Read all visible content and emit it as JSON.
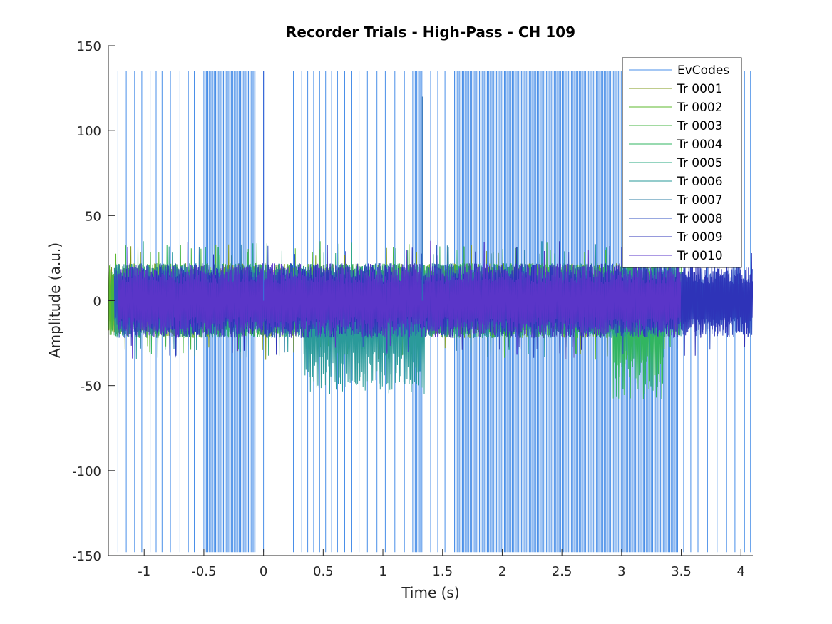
{
  "chart_data": {
    "type": "line",
    "title": "Recorder Trials - High-Pass - CH 109",
    "xlabel": "Time (s)",
    "ylabel": "Amplitude (a.u.)",
    "xlim": [
      -1.3,
      4.1
    ],
    "ylim": [
      -150,
      150
    ],
    "xticks": [
      -1,
      -0.5,
      0,
      0.5,
      1,
      1.5,
      2,
      2.5,
      3,
      3.5,
      4
    ],
    "xtick_labels": [
      "-1",
      "-0.5",
      "0",
      "0.5",
      "1",
      "1.5",
      "2",
      "2.5",
      "3",
      "3.5",
      "4"
    ],
    "yticks": [
      -150,
      -100,
      -50,
      0,
      50,
      100,
      150
    ],
    "ytick_labels": [
      "-150",
      "-100",
      "-50",
      "0",
      "50",
      "100",
      "150"
    ],
    "grid": false,
    "legend_position": "top-right",
    "evcodes": {
      "name": "EvCodes",
      "color": "#4a8fe8",
      "high": 135,
      "low": -148,
      "dense_bands": [
        [
          -0.5,
          -0.07
        ],
        [
          1.25,
          1.33
        ],
        [
          1.6,
          3.48
        ]
      ],
      "sparse_times": [
        -1.3,
        -1.22,
        -1.15,
        -1.08,
        -1.02,
        -0.95,
        -0.9,
        -0.85,
        -0.78,
        -0.7,
        -0.63,
        -0.58,
        0.0,
        0.25,
        0.28,
        0.32,
        0.37,
        0.42,
        0.47,
        0.52,
        0.57,
        0.62,
        0.68,
        0.74,
        0.8,
        0.87,
        0.95,
        1.02,
        1.1,
        1.18,
        1.4,
        1.46,
        1.52,
        3.52,
        3.58,
        3.64,
        3.72,
        3.8,
        3.88,
        3.95,
        4.03,
        4.08
      ]
    },
    "series": [
      {
        "name": "Tr 0001",
        "color": "#7f9a1a",
        "t_start": -1.3,
        "t_end": 3.0
      },
      {
        "name": "Tr 0002",
        "color": "#5cb82d",
        "t_start": -1.3,
        "t_end": 3.3
      },
      {
        "name": "Tr 0003",
        "color": "#44b443",
        "t_start": -1.28,
        "t_end": 3.5
      },
      {
        "name": "Tr 0004",
        "color": "#31b560",
        "t_start": -1.25,
        "t_end": 3.5
      },
      {
        "name": "Tr 0005",
        "color": "#2aa982",
        "t_start": -1.25,
        "t_end": 3.5
      },
      {
        "name": "Tr 0006",
        "color": "#2a9a9a",
        "t_start": -1.25,
        "t_end": 3.5
      },
      {
        "name": "Tr 0007",
        "color": "#2c7fa6",
        "t_start": -1.25,
        "t_end": 3.5
      },
      {
        "name": "Tr 0008",
        "color": "#3050c0",
        "t_start": -1.25,
        "t_end": 4.1
      },
      {
        "name": "Tr 0009",
        "color": "#2e33b8",
        "t_start": -1.22,
        "t_end": 4.1
      },
      {
        "name": "Tr 0010",
        "color": "#5a35c8",
        "t_start": -1.22,
        "t_end": 3.5
      }
    ],
    "noise_band": {
      "typical": 22,
      "peak_high": 36,
      "peak_low": -82
    },
    "deflections": [
      {
        "name": "Tr 0006",
        "t_start": 0.33,
        "t_end": 1.35,
        "low": -55
      },
      {
        "name": "Tr 0004",
        "t_start": 2.93,
        "t_end": 3.35,
        "low": -58
      }
    ],
    "spikes": [
      {
        "t": 1.33,
        "value": 120,
        "color": "#2a6fb8"
      },
      {
        "t": 0.0,
        "value": 135,
        "color": "#3a6ad8"
      }
    ]
  }
}
